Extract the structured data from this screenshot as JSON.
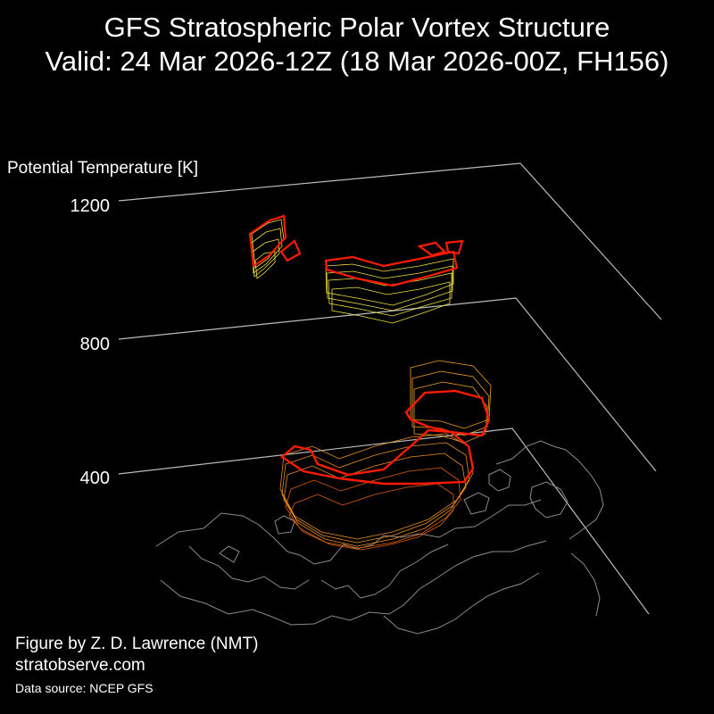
{
  "header": {
    "title_line1": "GFS Stratospheric Polar Vortex Structure",
    "title_line2": "Valid: 24 Mar 2026-12Z  (18 Mar 2026-00Z, FH156)"
  },
  "axis": {
    "label": "Potential Temperature [K]",
    "ticks": [
      "1200",
      "800",
      "400"
    ]
  },
  "footer": {
    "credit": "Figure by Z. D. Lawrence (NMT)",
    "website": "stratobserve.com",
    "source": "Data source: NCEP GFS"
  },
  "colors": {
    "background": "#000000",
    "level_planes": "#bbbbbb",
    "vortex_edge": "#ff1a00",
    "isentrope_low": "#e06010",
    "isentrope_mid": "#f0a020",
    "isentrope_high": "#f2e040",
    "coastline": "#8a8a8a"
  }
}
